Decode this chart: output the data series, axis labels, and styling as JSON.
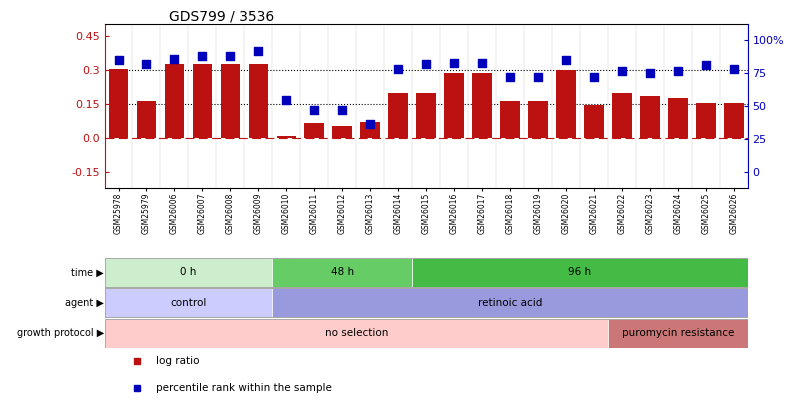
{
  "title": "GDS799 / 3536",
  "samples": [
    "GSM25978",
    "GSM25979",
    "GSM26006",
    "GSM26007",
    "GSM26008",
    "GSM26009",
    "GSM26010",
    "GSM26011",
    "GSM26012",
    "GSM26013",
    "GSM26014",
    "GSM26015",
    "GSM26016",
    "GSM26017",
    "GSM26018",
    "GSM26019",
    "GSM26020",
    "GSM26021",
    "GSM26022",
    "GSM26023",
    "GSM26024",
    "GSM26025",
    "GSM26026"
  ],
  "log_ratio": [
    0.305,
    0.165,
    0.325,
    0.325,
    0.325,
    0.325,
    0.01,
    0.065,
    0.055,
    0.07,
    0.2,
    0.2,
    0.285,
    0.285,
    0.165,
    0.165,
    0.3,
    0.145,
    0.2,
    0.185,
    0.175,
    0.155,
    0.155
  ],
  "percentile": [
    85,
    82,
    86,
    88,
    88,
    92,
    55,
    47,
    47,
    37,
    78,
    82,
    83,
    83,
    72,
    72,
    85,
    72,
    77,
    75,
    77,
    81,
    78
  ],
  "bar_color": "#bb1111",
  "dot_color": "#0000bb",
  "left_yticks": [
    -0.15,
    0.0,
    0.15,
    0.3,
    0.45
  ],
  "left_ylim": [
    -0.22,
    0.5
  ],
  "right_yticks": [
    0,
    25,
    50,
    75,
    100
  ],
  "right_ylim": [
    -12,
    112
  ],
  "hline_y": [
    0.15,
    0.3
  ],
  "dot_size": 35,
  "time_groups": [
    {
      "label": "0 h",
      "start": 0,
      "end": 6,
      "color": "#cceecc"
    },
    {
      "label": "48 h",
      "start": 6,
      "end": 11,
      "color": "#66cc66"
    },
    {
      "label": "96 h",
      "start": 11,
      "end": 23,
      "color": "#44bb44"
    }
  ],
  "agent_groups": [
    {
      "label": "control",
      "start": 0,
      "end": 6,
      "color": "#ccccff"
    },
    {
      "label": "retinoic acid",
      "start": 6,
      "end": 23,
      "color": "#9999dd"
    }
  ],
  "growth_groups": [
    {
      "label": "no selection",
      "start": 0,
      "end": 18,
      "color": "#ffcccc"
    },
    {
      "label": "puromycin resistance",
      "start": 18,
      "end": 23,
      "color": "#cc7777"
    }
  ],
  "row_labels": [
    "time",
    "agent",
    "growth protocol"
  ],
  "legend_labels": [
    "log ratio",
    "percentile rank within the sample"
  ],
  "legend_colors": [
    "#bb1111",
    "#0000bb"
  ]
}
